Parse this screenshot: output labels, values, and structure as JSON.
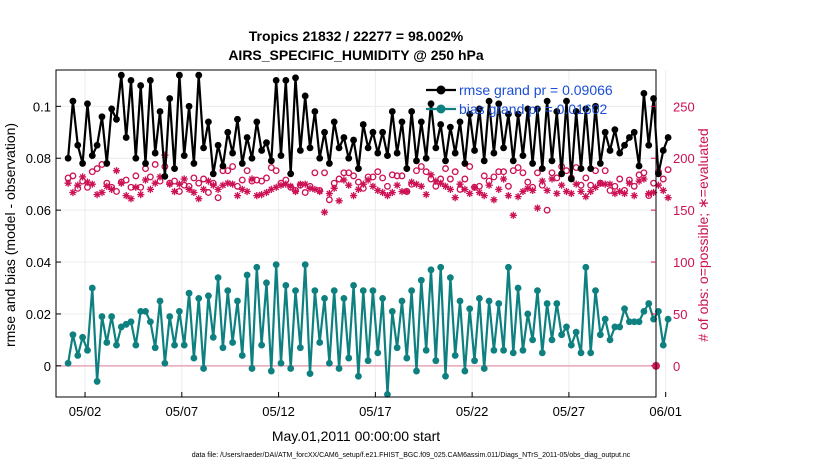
{
  "chart_data": {
    "type": "line",
    "title": "Tropics 21832 / 22277 = 98.002%",
    "subtitle": "AIRS_SPECIFIC_HUMIDITY @ 250 hPa",
    "xlabel": "May.01,2011 00:00:00 start",
    "ylabel": "rmse and bias (model - observation)",
    "y2label": "# of obs: o=possible; ∗=evaluated",
    "footer": "data file: /Users/raeder/DAI/ATM_forcXX/CAM6_setup/f.e21.FHIST_BGC.f09_025.CAM6assim.011/Diags_NTrS_2011-05/obs_diag_output.nc",
    "xlim": [
      0.5,
      31.5
    ],
    "ylim": [
      -0.012,
      0.114
    ],
    "y2lim": [
      -30,
      285
    ],
    "x_ticks": [
      {
        "v": 2,
        "label": "05/02"
      },
      {
        "v": 7,
        "label": "05/07"
      },
      {
        "v": 12,
        "label": "05/12"
      },
      {
        "v": 17,
        "label": "05/17"
      },
      {
        "v": 22,
        "label": "05/22"
      },
      {
        "v": 27,
        "label": "05/27"
      },
      {
        "v": 32,
        "label": "06/01"
      }
    ],
    "y_ticks": [
      {
        "v": 0,
        "label": "0"
      },
      {
        "v": 0.02,
        "label": "0.02"
      },
      {
        "v": 0.04,
        "label": "0.04"
      },
      {
        "v": 0.06,
        "label": "0.06"
      },
      {
        "v": 0.08,
        "label": "0.08"
      },
      {
        "v": 0.1,
        "label": "0.1"
      }
    ],
    "y2_ticks": [
      {
        "v": 0,
        "label": "0"
      },
      {
        "v": 50,
        "label": "50"
      },
      {
        "v": 100,
        "label": "100"
      },
      {
        "v": 150,
        "label": "150"
      },
      {
        "v": 200,
        "label": "200"
      },
      {
        "v": 250,
        "label": "250"
      }
    ],
    "legend": [
      {
        "label": "rmse grand pr = 0.09066",
        "color": "#000000"
      },
      {
        "label": "bias grand pr = 0.01602",
        "color": "#0e8080"
      }
    ],
    "x_start": 1.125,
    "x_step": 0.25,
    "series": [
      {
        "name": "rmse",
        "color": "#000000",
        "values": [
          0.08,
          0.102,
          0.085,
          0.078,
          0.101,
          0.081,
          0.085,
          0.096,
          0.078,
          0.099,
          0.095,
          0.112,
          0.088,
          0.11,
          0.08,
          0.108,
          0.078,
          0.11,
          0.082,
          0.098,
          0.073,
          0.103,
          0.076,
          0.112,
          0.081,
          0.1,
          0.078,
          0.112,
          0.084,
          0.094,
          0.074,
          0.085,
          0.077,
          0.09,
          0.082,
          0.095,
          0.078,
          0.088,
          0.08,
          0.094,
          0.083,
          0.086,
          0.079,
          0.11,
          0.081,
          0.11,
          0.074,
          0.111,
          0.083,
          0.104,
          0.084,
          0.098,
          0.08,
          0.09,
          0.078,
          0.094,
          0.084,
          0.088,
          0.08,
          0.087,
          0.076,
          0.093,
          0.084,
          0.09,
          0.082,
          0.09,
          0.081,
          0.098,
          0.082,
          0.094,
          0.076,
          0.098,
          0.079,
          0.094,
          0.08,
          0.101,
          0.084,
          0.093,
          0.079,
          0.092,
          0.082,
          0.094,
          0.078,
          0.097,
          0.083,
          0.099,
          0.079,
          0.102,
          0.082,
          0.101,
          0.084,
          0.097,
          0.079,
          0.097,
          0.081,
          0.099,
          0.078,
          0.099,
          0.076,
          0.102,
          0.079,
          0.098,
          0.074,
          0.102,
          0.072,
          0.098,
          0.076,
          0.099,
          0.076,
          0.1,
          0.078,
          0.09,
          0.083,
          0.091,
          0.082,
          0.085,
          0.088,
          0.09,
          0.077,
          0.105,
          0.085,
          0.103,
          0.074,
          0.083,
          0.088
        ]
      },
      {
        "name": "bias",
        "color": "#0e8080",
        "values": [
          0.001,
          0.012,
          0.004,
          0.011,
          0.006,
          0.03,
          -0.006,
          0.019,
          0.009,
          0.019,
          0.008,
          0.015,
          0.016,
          0.017,
          0.008,
          0.021,
          0.021,
          0.017,
          0.007,
          0.025,
          0.001,
          0.019,
          0.008,
          0.021,
          0.008,
          0.028,
          0.003,
          0.026,
          -0.001,
          0.027,
          0.011,
          0.034,
          0.007,
          0.029,
          0.009,
          0.025,
          0.004,
          0.035,
          -0.001,
          0.038,
          0.008,
          0.032,
          -0.002,
          0.039,
          0.001,
          0.031,
          -0.001,
          0.029,
          0.007,
          0.039,
          -0.003,
          0.029,
          0.009,
          0.026,
          0.001,
          0.029,
          -0.001,
          0.026,
          0.003,
          0.031,
          -0.004,
          0.029,
          0.002,
          0.029,
          0.005,
          0.026,
          -0.011,
          0.021,
          0.007,
          0.025,
          0.003,
          0.029,
          -0.002,
          0.033,
          0.006,
          0.037,
          0.002,
          0.038,
          -0.004,
          0.034,
          0.004,
          0.025,
          -0.002,
          0.022,
          0.002,
          0.026,
          -0.001,
          0.025,
          0.006,
          0.024,
          0.006,
          0.038,
          0.005,
          0.03,
          0.006,
          0.02,
          0.01,
          0.029,
          0.005,
          0.024,
          0.01,
          0.024,
          0.012,
          0.015,
          0.008,
          0.013,
          0.005,
          0.038,
          0.005,
          0.029,
          0.012,
          0.018,
          0.01,
          0.015,
          0.015,
          0.022,
          0.017,
          0.017,
          0.017,
          0.021,
          0.024,
          0.018,
          0.021,
          0.008,
          0.018
        ]
      },
      {
        "name": "obs_possible",
        "color": "#cc1155",
        "marker": "o",
        "values": [
          181,
          183,
          171,
          178,
          172,
          187,
          190,
          194,
          176,
          172,
          168,
          177,
          179,
          172,
          183,
          172,
          190,
          182,
          194,
          178,
          192,
          176,
          178,
          168,
          174,
          173,
          181,
          176,
          180,
          167,
          176,
          162,
          188,
          188,
          192,
          173,
          179,
          188,
          178,
          179,
          178,
          181,
          191,
          188,
          176,
          179,
          172,
          169,
          174,
          167,
          173,
          186,
          169,
          186,
          160,
          176,
          180,
          186,
          186,
          183,
          177,
          171,
          182,
          182,
          187,
          181,
          173,
          184,
          183,
          183,
          168,
          175,
          188,
          192,
          187,
          180,
          173,
          180,
          190,
          180,
          187,
          170,
          180,
          192,
          172,
          173,
          183,
          178,
          182,
          187,
          187,
          173,
          188,
          191,
          186,
          177,
          172,
          186,
          174,
          150,
          186,
          181,
          192,
          188,
          181,
          191,
          174,
          181,
          174,
          188,
          176,
          188,
          169,
          173,
          180,
          169,
          179,
          173,
          184,
          186,
          164,
          176,
          187,
          180,
          189
        ]
      },
      {
        "name": "obs_evaluated",
        "color": "#cc1155",
        "marker": "*",
        "values": [
          176,
          167,
          174,
          182,
          177,
          175,
          165,
          167,
          173,
          170,
          188,
          176,
          164,
          161,
          172,
          165,
          179,
          170,
          176,
          182,
          203,
          175,
          168,
          175,
          180,
          170,
          167,
          161,
          170,
          178,
          174,
          170,
          174,
          176,
          175,
          164,
          170,
          168,
          180,
          164,
          165,
          167,
          170,
          172,
          174,
          175,
          173,
          168,
          175,
          175,
          171,
          170,
          168,
          148,
          166,
          171,
          159,
          179,
          174,
          164,
          170,
          175,
          179,
          173,
          169,
          167,
          164,
          167,
          174,
          168,
          168,
          177,
          175,
          173,
          165,
          184,
          178,
          176,
          173,
          170,
          162,
          175,
          170,
          166,
          172,
          167,
          164,
          174,
          160,
          170,
          180,
          164,
          145,
          163,
          168,
          171,
          169,
          152,
          178,
          169,
          180,
          166,
          174,
          168,
          166,
          175,
          168,
          163,
          168,
          172,
          176,
          175,
          175,
          166,
          168,
          166,
          176,
          164,
          178,
          180,
          166,
          167,
          174,
          169,
          162
        ]
      }
    ]
  }
}
